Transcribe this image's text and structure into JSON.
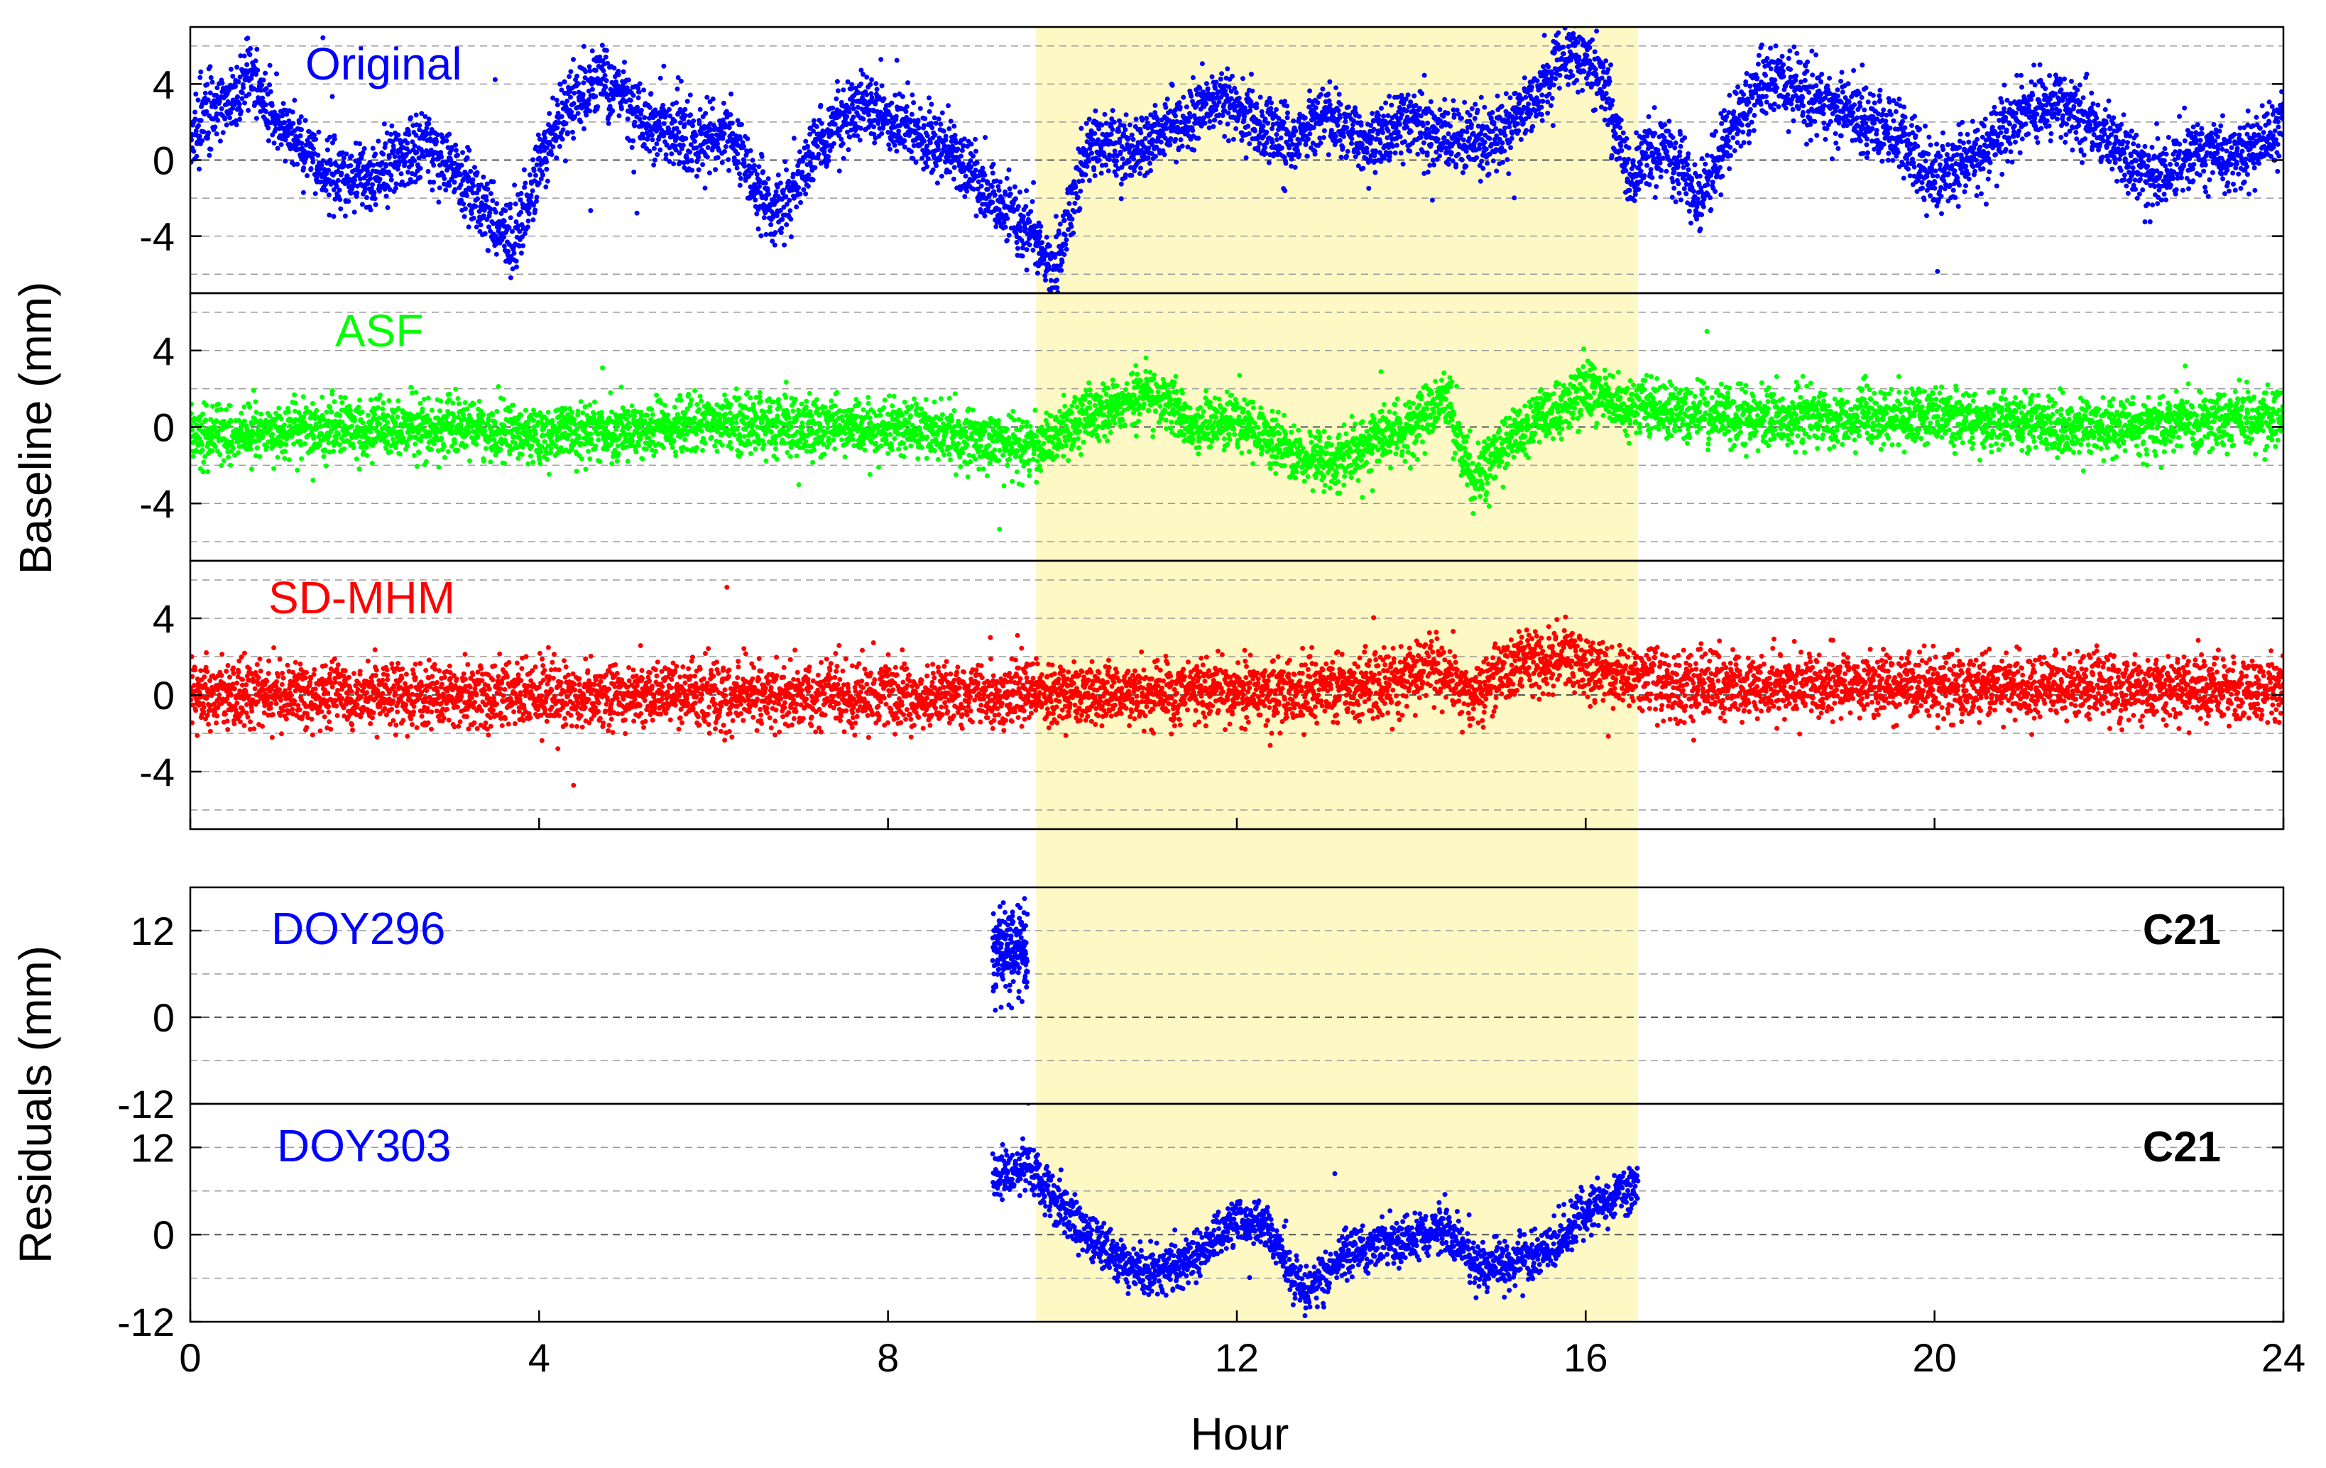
{
  "chart_data": {
    "type": "scatter",
    "x_axis": {
      "label": "Hour",
      "range": [
        0,
        24
      ],
      "ticks": [
        0,
        4,
        8,
        12,
        16,
        20,
        24
      ],
      "tick_labels": [
        "0",
        "4",
        "8",
        "12",
        "16",
        "20",
        "24"
      ]
    },
    "highlight_band": {
      "x_start": 9.7,
      "x_end": 16.6,
      "color": "#fdf8c4"
    },
    "groups": [
      {
        "ylabel": "Baseline (mm)",
        "panels": [
          0,
          1,
          2
        ]
      },
      {
        "ylabel": "Residuals (mm)",
        "panels": [
          3,
          4
        ]
      }
    ],
    "panels": [
      {
        "id": "original",
        "label": "Original",
        "color": "#0000ff",
        "ylim": [
          -7,
          7
        ],
        "yticks": [
          -4,
          0,
          4
        ],
        "ytick_labels": [
          "-4",
          "0",
          "4"
        ],
        "grid_dashed": [
          -6,
          -4,
          -2,
          0,
          2,
          4,
          6
        ],
        "x_range": [
          0,
          24
        ],
        "approx_profile": [
          [
            0.0,
            1.5
          ],
          [
            0.5,
            3.5
          ],
          [
            0.7,
            4.5
          ],
          [
            1.0,
            2.0
          ],
          [
            1.3,
            0.5
          ],
          [
            1.7,
            -1.0
          ],
          [
            2.2,
            -0.5
          ],
          [
            2.7,
            1.0
          ],
          [
            3.2,
            -1.5
          ],
          [
            3.7,
            -4.5
          ],
          [
            4.2,
            2.0
          ],
          [
            4.7,
            4.5
          ],
          [
            5.2,
            2.0
          ],
          [
            5.7,
            1.0
          ],
          [
            6.2,
            1.5
          ],
          [
            6.7,
            -3.0
          ],
          [
            7.2,
            1.0
          ],
          [
            7.7,
            3.0
          ],
          [
            8.2,
            1.5
          ],
          [
            8.7,
            0.5
          ],
          [
            9.2,
            -2.0
          ],
          [
            9.6,
            -3.5
          ],
          [
            9.9,
            -6.0
          ],
          [
            10.3,
            1.0
          ],
          [
            10.8,
            0.5
          ],
          [
            11.3,
            2.0
          ],
          [
            11.8,
            3.5
          ],
          [
            12.2,
            2.0
          ],
          [
            12.6,
            1.0
          ],
          [
            13.0,
            2.5
          ],
          [
            13.5,
            1.0
          ],
          [
            14.0,
            2.0
          ],
          [
            14.5,
            1.0
          ],
          [
            15.0,
            1.5
          ],
          [
            15.4,
            3.0
          ],
          [
            15.8,
            6.0
          ],
          [
            16.2,
            4.0
          ],
          [
            16.5,
            -1.0
          ],
          [
            16.9,
            1.0
          ],
          [
            17.3,
            -2.0
          ],
          [
            17.7,
            2.0
          ],
          [
            18.1,
            4.5
          ],
          [
            18.5,
            3.5
          ],
          [
            19.0,
            2.5
          ],
          [
            19.5,
            1.5
          ],
          [
            20.0,
            -1.0
          ],
          [
            20.5,
            0.5
          ],
          [
            21.0,
            2.5
          ],
          [
            21.5,
            3.0
          ],
          [
            22.0,
            1.0
          ],
          [
            22.5,
            -1.0
          ],
          [
            23.0,
            0.5
          ],
          [
            23.5,
            0.0
          ],
          [
            24.0,
            2.0
          ]
        ],
        "noise_sigma": 0.9
      },
      {
        "id": "asf",
        "label": "ASF",
        "color": "#00ff00",
        "ylim": [
          -7,
          7
        ],
        "yticks": [
          -4,
          0,
          4
        ],
        "ytick_labels": [
          "-4",
          "0",
          "4"
        ],
        "grid_dashed": [
          -6,
          -4,
          -2,
          0,
          2,
          4,
          6
        ],
        "x_range": [
          0,
          24
        ],
        "approx_profile": [
          [
            0.0,
            -0.5
          ],
          [
            2.0,
            0.0
          ],
          [
            4.0,
            -0.3
          ],
          [
            6.0,
            0.2
          ],
          [
            8.0,
            0.0
          ],
          [
            9.7,
            -1.0
          ],
          [
            10.5,
            1.0
          ],
          [
            11.0,
            2.0
          ],
          [
            11.5,
            0.0
          ],
          [
            12.0,
            0.5
          ],
          [
            12.5,
            -1.0
          ],
          [
            13.0,
            -2.0
          ],
          [
            13.5,
            -1.0
          ],
          [
            14.0,
            0.0
          ],
          [
            14.4,
            1.5
          ],
          [
            14.7,
            -3.0
          ],
          [
            15.0,
            -1.0
          ],
          [
            15.5,
            0.5
          ],
          [
            16.0,
            2.0
          ],
          [
            16.5,
            1.0
          ],
          [
            18.0,
            0.5
          ],
          [
            20.0,
            0.5
          ],
          [
            22.0,
            0.0
          ],
          [
            24.0,
            0.5
          ]
        ],
        "noise_sigma": 0.75
      },
      {
        "id": "sd-mhm",
        "label": "SD-MHM",
        "color": "#ff0000",
        "ylim": [
          -7,
          7
        ],
        "yticks": [
          -4,
          0,
          4
        ],
        "ytick_labels": [
          "-4",
          "0",
          "4"
        ],
        "grid_dashed": [
          -6,
          -4,
          -2,
          0,
          2,
          4,
          6
        ],
        "x_range": [
          0,
          24
        ],
        "approx_profile": [
          [
            0.0,
            0.0
          ],
          [
            4.0,
            0.0
          ],
          [
            8.0,
            0.0
          ],
          [
            12.0,
            0.2
          ],
          [
            13.5,
            0.5
          ],
          [
            14.3,
            1.5
          ],
          [
            14.7,
            0.0
          ],
          [
            15.2,
            1.5
          ],
          [
            15.6,
            2.0
          ],
          [
            16.0,
            1.5
          ],
          [
            17.0,
            0.5
          ],
          [
            20.0,
            0.5
          ],
          [
            24.0,
            0.3
          ]
        ],
        "noise_sigma": 0.85
      },
      {
        "id": "doy296",
        "label": "DOY296",
        "corner_label": "C21",
        "color": "#0000ff",
        "ylim": [
          -12,
          18
        ],
        "yticks": [
          -12,
          0,
          12
        ],
        "ytick_labels": [
          "-12",
          "0",
          "12"
        ],
        "grid_dashed": [
          -6,
          0,
          6,
          12,
          18
        ],
        "x_range": [
          9.2,
          9.6
        ],
        "approx_profile": [
          [
            9.2,
            8.0
          ],
          [
            9.3,
            10.0
          ],
          [
            9.4,
            9.0
          ],
          [
            9.5,
            10.0
          ],
          [
            9.6,
            9.0
          ]
        ],
        "noise_sigma": 3.5
      },
      {
        "id": "doy303",
        "label": "DOY303",
        "corner_label": "C21",
        "color": "#0000ff",
        "ylim": [
          -12,
          18
        ],
        "yticks": [
          -12,
          0,
          12
        ],
        "ytick_labels": [
          "-12",
          "0",
          "12"
        ],
        "grid_dashed": [
          -6,
          0,
          6,
          12,
          18
        ],
        "x_range": [
          9.2,
          16.6
        ],
        "approx_profile": [
          [
            9.2,
            8.0
          ],
          [
            9.6,
            9.0
          ],
          [
            10.0,
            4.0
          ],
          [
            10.4,
            -1.5
          ],
          [
            10.8,
            -4.5
          ],
          [
            11.2,
            -5.0
          ],
          [
            11.6,
            -2.0
          ],
          [
            12.0,
            2.0
          ],
          [
            12.3,
            1.5
          ],
          [
            12.6,
            -5.0
          ],
          [
            12.8,
            -8.0
          ],
          [
            13.2,
            -3.0
          ],
          [
            13.6,
            -1.5
          ],
          [
            14.0,
            -0.5
          ],
          [
            14.4,
            1.0
          ],
          [
            14.8,
            -5.0
          ],
          [
            15.2,
            -3.5
          ],
          [
            15.6,
            -2.0
          ],
          [
            16.0,
            3.0
          ],
          [
            16.3,
            5.0
          ],
          [
            16.6,
            7.0
          ]
        ],
        "noise_sigma": 1.6
      }
    ]
  }
}
